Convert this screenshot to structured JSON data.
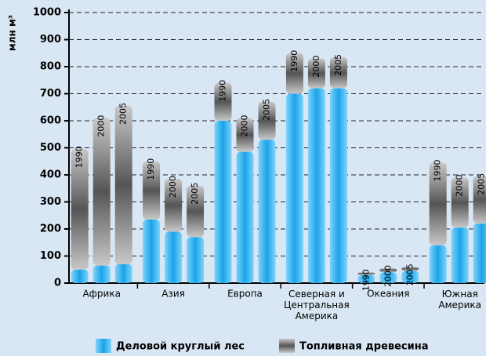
{
  "chart_data": {
    "type": "grouped-stacked-bar",
    "y_label": "млн м³",
    "categories": [
      "Африка",
      "Азия",
      "Европа",
      "Северная и\nЦентральная\nАмерика",
      "Океания",
      "Южная\nАмерика"
    ],
    "bar_labels": [
      "1990",
      "2000",
      "2005"
    ],
    "series": [
      {
        "name": "Деловой круглый лес",
        "color": "#1aa3e8",
        "values": [
          [
            50,
            65,
            70
          ],
          [
            235,
            190,
            170
          ],
          [
            600,
            485,
            530
          ],
          [
            700,
            720,
            720
          ],
          [
            30,
            40,
            45
          ],
          [
            140,
            205,
            220
          ]
        ]
      },
      {
        "name": "Топливная древесина",
        "color": "#555555",
        "values": [
          [
            445,
            545,
            585
          ],
          [
            215,
            195,
            190
          ],
          [
            140,
            125,
            140
          ],
          [
            150,
            110,
            115
          ],
          [
            10,
            15,
            15
          ],
          [
            305,
            185,
            175
          ]
        ]
      }
    ],
    "ylim": [
      0,
      1000
    ],
    "yticks": [
      0,
      100,
      200,
      300,
      400,
      500,
      600,
      700,
      800,
      900,
      1000
    ],
    "grid": true,
    "legend": "bottom"
  }
}
